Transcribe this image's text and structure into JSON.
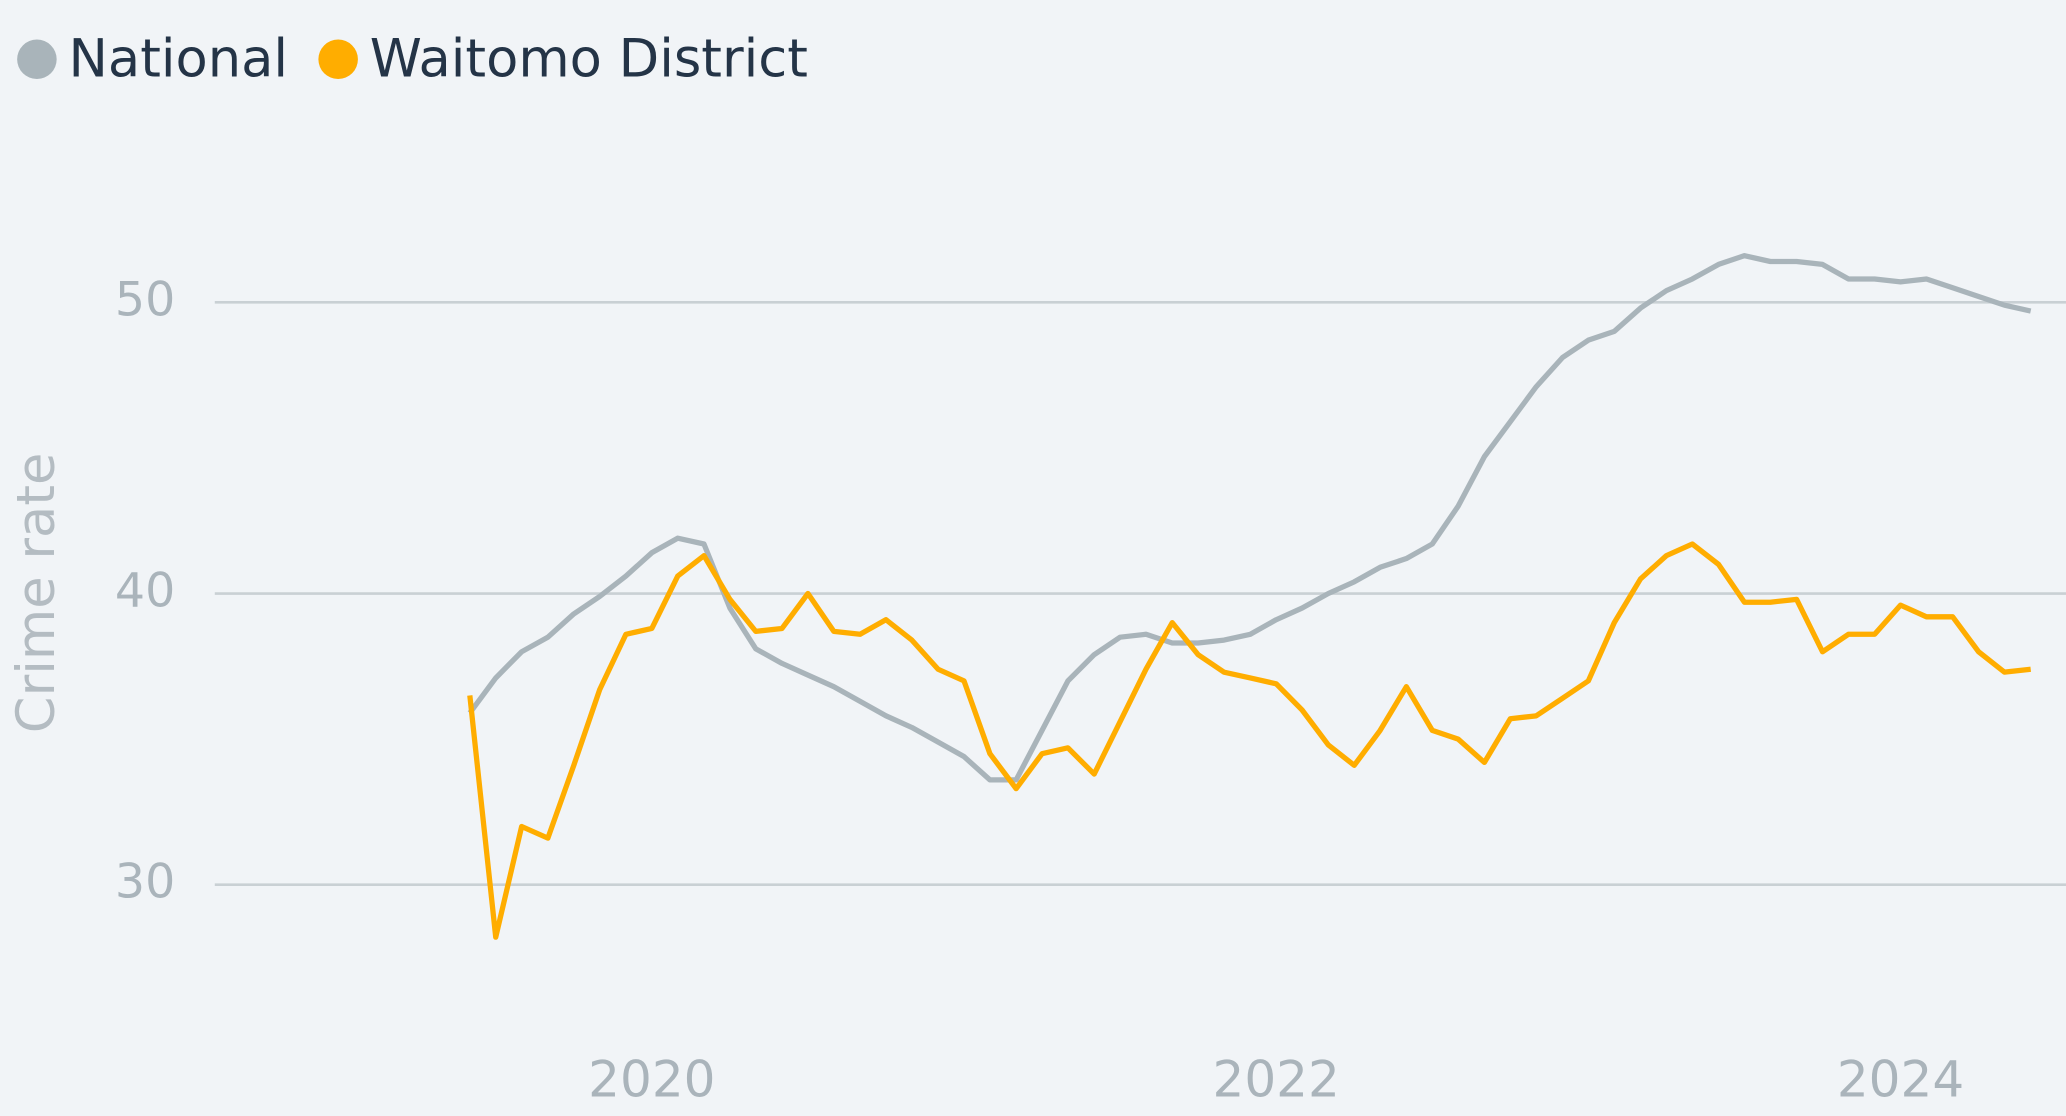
{
  "chart_data": {
    "type": "line",
    "y_label": "Crime rate",
    "legend": "top-left",
    "grid": true,
    "xlim": [
      2018.6,
      2024.53
    ],
    "xticks": [
      2020,
      2022,
      2024
    ],
    "ylim": [
      25,
      54
    ],
    "yticks": [
      30,
      40,
      50
    ],
    "x": [
      2019.417,
      2019.5,
      2019.583,
      2019.667,
      2019.75,
      2019.833,
      2019.917,
      2020,
      2020.083,
      2020.167,
      2020.25,
      2020.333,
      2020.417,
      2020.5,
      2020.583,
      2020.667,
      2020.75,
      2020.833,
      2020.917,
      2021,
      2021.083,
      2021.167,
      2021.25,
      2021.333,
      2021.417,
      2021.5,
      2021.583,
      2021.667,
      2021.75,
      2021.833,
      2021.917,
      2022,
      2022.083,
      2022.167,
      2022.25,
      2022.333,
      2022.417,
      2022.5,
      2022.583,
      2022.667,
      2022.75,
      2022.833,
      2022.917,
      2023,
      2023.083,
      2023.167,
      2023.25,
      2023.333,
      2023.417,
      2023.5,
      2023.583,
      2023.667,
      2023.75,
      2023.833,
      2023.917,
      2024,
      2024.083,
      2024.167,
      2024.25,
      2024.333,
      2024.417
    ],
    "series": [
      {
        "name": "National",
        "color": "#a9b4ba",
        "values": [
          35.9,
          37.1,
          38.0,
          38.5,
          39.3,
          39.9,
          40.6,
          41.4,
          41.9,
          41.7,
          39.5,
          38.1,
          37.6,
          37.2,
          36.8,
          36.3,
          35.8,
          35.4,
          34.9,
          34.4,
          33.6,
          33.6,
          35.3,
          37.0,
          37.9,
          38.5,
          38.6,
          38.3,
          38.3,
          38.4,
          38.6,
          39.1,
          39.5,
          40.0,
          40.4,
          40.9,
          41.2,
          41.7,
          43.0,
          44.7,
          45.9,
          47.1,
          48.1,
          48.7,
          49.0,
          49.8,
          50.4,
          50.8,
          51.3,
          51.6,
          51.4,
          51.4,
          51.3,
          50.8,
          50.8,
          50.7,
          50.8,
          50.5,
          50.2,
          49.9,
          49.7
        ]
      },
      {
        "name": "Waitomo District",
        "color": "#ffad00",
        "values": [
          36.5,
          28.2,
          32.0,
          31.6,
          34.1,
          36.7,
          38.6,
          38.8,
          40.6,
          41.3,
          39.8,
          38.7,
          38.8,
          40.0,
          38.7,
          38.6,
          39.1,
          38.4,
          37.4,
          37.0,
          34.5,
          33.3,
          34.5,
          34.7,
          33.8,
          35.6,
          37.4,
          39.0,
          37.9,
          37.3,
          37.1,
          36.9,
          36.0,
          34.8,
          34.1,
          35.3,
          36.8,
          35.3,
          35.0,
          34.2,
          35.7,
          35.8,
          36.4,
          37.0,
          39.0,
          40.5,
          41.3,
          41.7,
          41.0,
          39.7,
          39.7,
          39.8,
          38.0,
          38.6,
          38.6,
          39.6,
          39.2,
          39.2,
          38.0,
          37.3,
          37.4
        ]
      }
    ]
  }
}
